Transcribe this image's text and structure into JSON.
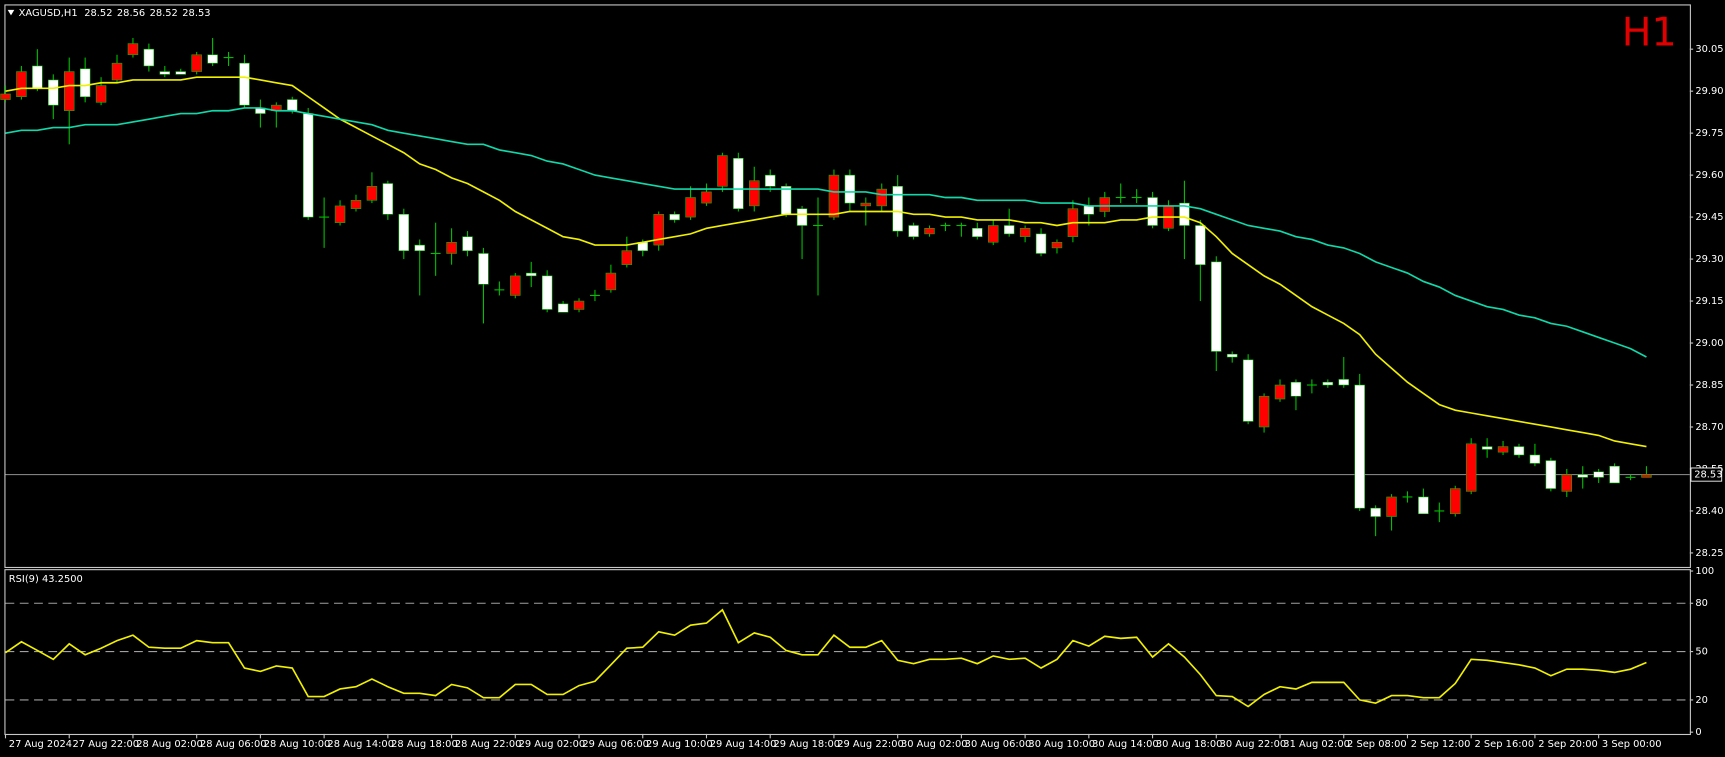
{
  "chart_data": [
    {
      "type": "candlestick",
      "title": "XAGUSD,H1",
      "timeframe_label": "H1",
      "categories": [
        "27 Aug 2024",
        null,
        null,
        null,
        "27 Aug 22:00",
        null,
        null,
        null,
        "28 Aug 02:00",
        null,
        null,
        null,
        "28 Aug 06:00",
        null,
        null,
        null,
        "28 Aug 10:00",
        null,
        null,
        null,
        "28 Aug 14:00",
        null,
        null,
        null,
        "28 Aug 18:00",
        null,
        null,
        null,
        "28 Aug 22:00",
        null,
        null,
        null,
        "29 Aug 02:00",
        null,
        null,
        null,
        "29 Aug 06:00",
        null,
        null,
        null,
        "29 Aug 10:00",
        null,
        null,
        null,
        "29 Aug 14:00",
        null,
        null,
        null,
        "29 Aug 18:00",
        null,
        null,
        null,
        "29 Aug 22:00",
        null,
        null,
        null,
        "30 Aug 02:00",
        null,
        null,
        null,
        "30 Aug 06:00",
        null,
        null,
        null,
        "30 Aug 10:00",
        null,
        null,
        null,
        "30 Aug 14:00",
        null,
        null,
        null,
        "30 Aug 18:00",
        null,
        null,
        null,
        "30 Aug 22:00",
        null,
        null,
        null,
        "31 Aug 02:00",
        null,
        null,
        null,
        "2 Sep 08:00",
        null,
        null,
        null,
        "2 Sep 12:00",
        null,
        null,
        null,
        "2 Sep 16:00",
        null,
        null,
        null,
        "2 Sep 20:00",
        null,
        null,
        null,
        "3 Sep 00:00",
        null,
        null,
        null
      ],
      "open": [
        29.87,
        29.88,
        29.99,
        29.94,
        29.83,
        29.98,
        29.86,
        29.94,
        30.03,
        30.05,
        29.97,
        29.97,
        29.97,
        30.03,
        30.02,
        30.0,
        29.84,
        29.83,
        29.87,
        29.82,
        29.45,
        29.43,
        29.48,
        29.51,
        29.57,
        29.46,
        29.35,
        29.32,
        29.32,
        29.38,
        29.32,
        29.19,
        29.17,
        29.25,
        29.24,
        29.14,
        29.12,
        29.17,
        29.19,
        29.28,
        29.36,
        29.35,
        29.46,
        29.45,
        29.5,
        29.56,
        29.66,
        29.49,
        29.6,
        29.56,
        29.48,
        29.42,
        29.45,
        29.6,
        29.49,
        29.49,
        29.56,
        29.42,
        29.39,
        29.42,
        29.42,
        29.41,
        29.36,
        29.42,
        29.38,
        29.39,
        29.34,
        29.38,
        29.49,
        29.47,
        29.52,
        29.52,
        29.52,
        29.41,
        29.5,
        29.42,
        29.29,
        28.96,
        28.94,
        28.7,
        28.8,
        28.86,
        28.85,
        28.86,
        28.87,
        28.85,
        28.41,
        28.38,
        28.45,
        28.45,
        28.4,
        28.39,
        28.47,
        28.63,
        28.61,
        28.63,
        28.6,
        28.58,
        28.47,
        28.53,
        28.54,
        28.56,
        28.52,
        28.52
      ],
      "high": [
        29.92,
        29.99,
        30.05,
        29.96,
        30.02,
        30.02,
        29.95,
        30.03,
        30.09,
        30.07,
        29.99,
        29.98,
        30.04,
        30.09,
        30.04,
        30.03,
        29.87,
        29.86,
        29.88,
        29.84,
        29.52,
        29.51,
        29.53,
        29.61,
        29.58,
        29.48,
        29.37,
        29.43,
        29.41,
        29.4,
        29.34,
        29.22,
        29.25,
        29.29,
        29.26,
        29.15,
        29.16,
        29.19,
        29.28,
        29.38,
        29.37,
        29.47,
        29.47,
        29.56,
        29.57,
        29.68,
        29.68,
        29.63,
        29.62,
        29.57,
        29.49,
        29.52,
        29.62,
        29.62,
        29.52,
        29.57,
        29.6,
        29.43,
        29.42,
        29.43,
        29.43,
        29.43,
        29.44,
        29.48,
        29.42,
        29.41,
        29.37,
        29.51,
        29.52,
        29.54,
        29.57,
        29.55,
        29.54,
        29.51,
        29.58,
        29.44,
        29.31,
        28.97,
        28.96,
        28.82,
        28.87,
        28.87,
        28.87,
        28.87,
        28.95,
        28.89,
        28.42,
        28.46,
        28.47,
        28.48,
        28.43,
        28.49,
        28.66,
        28.66,
        28.65,
        28.64,
        28.64,
        28.59,
        28.55,
        28.56,
        28.55,
        28.57,
        28.53,
        28.56
      ],
      "low": [
        29.86,
        29.87,
        29.9,
        29.8,
        29.71,
        29.86,
        29.85,
        29.93,
        30.02,
        29.97,
        29.95,
        29.96,
        29.96,
        29.99,
        29.99,
        29.84,
        29.77,
        29.77,
        29.82,
        29.44,
        29.34,
        29.42,
        29.47,
        29.5,
        29.44,
        29.3,
        29.17,
        29.24,
        29.28,
        29.31,
        29.07,
        29.17,
        29.16,
        29.2,
        29.11,
        29.11,
        29.11,
        29.15,
        29.18,
        29.27,
        29.31,
        29.33,
        29.43,
        29.44,
        29.49,
        29.54,
        29.47,
        29.47,
        29.54,
        29.45,
        29.3,
        29.17,
        29.44,
        29.47,
        29.42,
        29.47,
        29.38,
        29.37,
        29.38,
        29.4,
        29.38,
        29.37,
        29.35,
        29.38,
        29.36,
        29.31,
        29.32,
        29.36,
        29.42,
        29.45,
        29.5,
        29.5,
        29.41,
        29.4,
        29.3,
        29.15,
        28.9,
        28.93,
        28.71,
        28.68,
        28.79,
        28.76,
        28.82,
        28.84,
        28.84,
        28.4,
        28.31,
        28.33,
        28.43,
        28.39,
        28.36,
        28.38,
        28.46,
        28.59,
        28.6,
        28.59,
        28.56,
        28.47,
        28.45,
        28.48,
        28.5,
        28.5,
        28.51,
        28.52
      ],
      "close": [
        29.89,
        29.97,
        29.91,
        29.85,
        29.97,
        29.88,
        29.92,
        30.0,
        30.07,
        29.99,
        29.96,
        29.96,
        30.03,
        30.0,
        30.02,
        29.85,
        29.82,
        29.85,
        29.83,
        29.45,
        29.45,
        29.49,
        29.51,
        29.56,
        29.46,
        29.33,
        29.33,
        29.32,
        29.36,
        29.33,
        29.21,
        29.19,
        29.24,
        29.24,
        29.12,
        29.11,
        29.15,
        29.17,
        29.25,
        29.33,
        29.33,
        29.46,
        29.44,
        29.52,
        29.54,
        29.67,
        29.48,
        29.58,
        29.56,
        29.46,
        29.42,
        29.42,
        29.6,
        29.5,
        29.5,
        29.55,
        29.4,
        29.38,
        29.41,
        29.42,
        29.42,
        29.38,
        29.42,
        29.39,
        29.41,
        29.32,
        29.36,
        29.48,
        29.46,
        29.52,
        29.52,
        29.52,
        29.42,
        29.49,
        29.42,
        29.28,
        28.97,
        28.95,
        28.72,
        28.81,
        28.85,
        28.81,
        28.85,
        28.85,
        28.85,
        28.41,
        28.38,
        28.45,
        28.45,
        28.39,
        28.4,
        28.48,
        28.64,
        28.62,
        28.63,
        28.6,
        28.57,
        28.48,
        28.53,
        28.52,
        28.52,
        28.5,
        28.52,
        28.53
      ],
      "up_color": "#ff0000",
      "down_color": "#ffffff",
      "wick_color": "#00c000",
      "price_line_color": "#808080",
      "series": [
        {
          "color": "#f0f000",
          "values": [
            29.9,
            29.91,
            29.91,
            29.91,
            29.92,
            29.92,
            29.93,
            29.93,
            29.94,
            29.94,
            29.94,
            29.94,
            29.95,
            29.95,
            29.95,
            29.95,
            29.94,
            29.93,
            29.92,
            29.88,
            29.84,
            29.8,
            29.77,
            29.74,
            29.71,
            29.68,
            29.64,
            29.62,
            29.59,
            29.57,
            29.54,
            29.51,
            29.47,
            29.44,
            29.41,
            29.38,
            29.37,
            29.35,
            29.35,
            29.35,
            29.36,
            29.37,
            29.38,
            29.39,
            29.41,
            29.42,
            29.43,
            29.44,
            29.45,
            29.46,
            29.46,
            29.46,
            29.46,
            29.47,
            29.47,
            29.47,
            29.47,
            29.46,
            29.46,
            29.45,
            29.45,
            29.44,
            29.44,
            29.44,
            29.43,
            29.43,
            29.42,
            29.43,
            29.43,
            29.43,
            29.44,
            29.44,
            29.45,
            29.45,
            29.45,
            29.43,
            29.38,
            29.32,
            29.28,
            29.24,
            29.21,
            29.17,
            29.13,
            29.1,
            29.07,
            29.03,
            28.96,
            28.91,
            28.86,
            28.82,
            28.78,
            28.76,
            28.75,
            28.74,
            28.73,
            28.72,
            28.71,
            28.7,
            28.69,
            28.68,
            28.67,
            28.65,
            28.64,
            28.63
          ]
        },
        {
          "color": "#10d8a8",
          "values": [
            29.75,
            29.76,
            29.76,
            29.77,
            29.77,
            29.78,
            29.78,
            29.78,
            29.79,
            29.8,
            29.81,
            29.82,
            29.82,
            29.83,
            29.83,
            29.84,
            29.84,
            29.83,
            29.83,
            29.82,
            29.81,
            29.8,
            29.79,
            29.78,
            29.76,
            29.75,
            29.74,
            29.73,
            29.72,
            29.71,
            29.71,
            29.69,
            29.68,
            29.67,
            29.65,
            29.64,
            29.62,
            29.6,
            29.59,
            29.58,
            29.57,
            29.56,
            29.55,
            29.55,
            29.55,
            29.55,
            29.55,
            29.55,
            29.55,
            29.55,
            29.55,
            29.55,
            29.54,
            29.54,
            29.54,
            29.53,
            29.53,
            29.53,
            29.53,
            29.52,
            29.52,
            29.51,
            29.51,
            29.51,
            29.51,
            29.5,
            29.5,
            29.5,
            29.49,
            29.49,
            29.49,
            29.49,
            29.49,
            29.49,
            29.49,
            29.48,
            29.46,
            29.44,
            29.42,
            29.41,
            29.4,
            29.38,
            29.37,
            29.35,
            29.34,
            29.32,
            29.29,
            29.27,
            29.25,
            29.22,
            29.2,
            29.17,
            29.15,
            29.13,
            29.12,
            29.1,
            29.09,
            29.07,
            29.06,
            29.04,
            29.02,
            29.0,
            28.98,
            28.95
          ]
        }
      ],
      "ylim": [
        28.2,
        30.21
      ],
      "yticks": [
        30.05,
        {
          "value": 29.9,
          "label": "29.90"
        },
        29.75,
        {
          "value": 29.6,
          "label": "29.60"
        },
        29.45,
        {
          "value": 29.3,
          "label": "29.30"
        },
        29.15,
        {
          "value": 29.0,
          "label": "29.00"
        },
        28.85,
        {
          "value": 28.7,
          "label": "28.70"
        },
        28.55,
        {
          "value": 28.4,
          "label": "28.40"
        },
        28.25
      ]
    },
    {
      "type": "line",
      "title": "RSI(9) 43.2500",
      "color": "#f0f000",
      "values": [
        49.3,
        56.1,
        50.7,
        45.2,
        54.8,
        48.0,
        52.1,
        56.8,
        60.2,
        52.7,
        52.1,
        52.1,
        56.8,
        55.5,
        55.5,
        39.8,
        37.7,
        41.1,
        39.8,
        22.1,
        22.1,
        26.8,
        28.2,
        33.0,
        28.2,
        24.1,
        24.1,
        22.7,
        29.6,
        27.5,
        21.4,
        21.4,
        29.6,
        29.6,
        23.4,
        23.4,
        28.9,
        31.6,
        41.8,
        52.1,
        52.7,
        62.3,
        60.2,
        66.4,
        67.7,
        75.9,
        55.5,
        61.6,
        58.9,
        50.7,
        48.0,
        48.0,
        60.2,
        52.7,
        52.7,
        56.8,
        44.6,
        42.5,
        45.2,
        45.2,
        45.9,
        42.5,
        47.3,
        45.2,
        45.9,
        39.8,
        45.2,
        56.8,
        53.4,
        59.5,
        58.2,
        58.9,
        46.6,
        54.8,
        46.6,
        35.7,
        22.7,
        22.1,
        15.9,
        23.4,
        28.2,
        26.8,
        30.9,
        30.9,
        30.9,
        20.0,
        18.0,
        22.7,
        22.7,
        21.4,
        21.4,
        30.2,
        45.2,
        44.6,
        43.2,
        41.8,
        39.8,
        35.0,
        39.1,
        39.1,
        38.4,
        37.1,
        39.1,
        43.25
      ],
      "ylim": [
        -1.1,
        100.5
      ],
      "yticks": [
        100,
        80,
        50,
        20,
        0
      ],
      "levels": [
        80,
        50,
        20
      ]
    }
  ]
}
